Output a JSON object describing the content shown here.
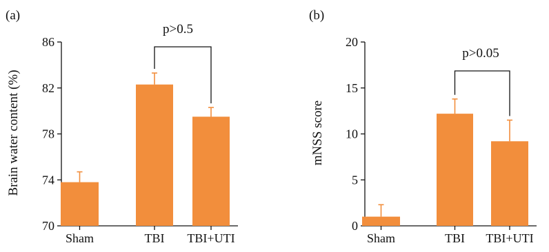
{
  "colors": {
    "bar": "#f28e3c",
    "axis": "#111111"
  },
  "chart_data": [
    {
      "type": "bar",
      "panel_label": "(a)",
      "categories": [
        "Sham",
        "TBI",
        "TBI+UTI"
      ],
      "values": [
        73.8,
        82.3,
        79.5
      ],
      "errors": [
        0.9,
        1.0,
        0.8
      ],
      "title": "",
      "xlabel": "",
      "ylabel": "Brain water content (%)",
      "ylim": [
        70,
        86
      ],
      "yticks": [
        70,
        74,
        78,
        82,
        86
      ],
      "grid": false,
      "legend": "none",
      "annotation": {
        "text": "p>0.5",
        "from": "TBI",
        "to": "TBI+UTI"
      }
    },
    {
      "type": "bar",
      "panel_label": "(b)",
      "categories": [
        "Sham",
        "TBI",
        "TBI+UTI"
      ],
      "values": [
        1.0,
        12.2,
        9.2
      ],
      "errors": [
        1.3,
        1.6,
        2.3
      ],
      "title": "",
      "xlabel": "",
      "ylabel": "mNSS score",
      "ylim": [
        0,
        20
      ],
      "yticks": [
        0,
        5,
        10,
        15,
        20
      ],
      "grid": false,
      "legend": "none",
      "annotation": {
        "text": "p>0.05",
        "from": "TBI",
        "to": "TBI+UTI"
      }
    }
  ]
}
